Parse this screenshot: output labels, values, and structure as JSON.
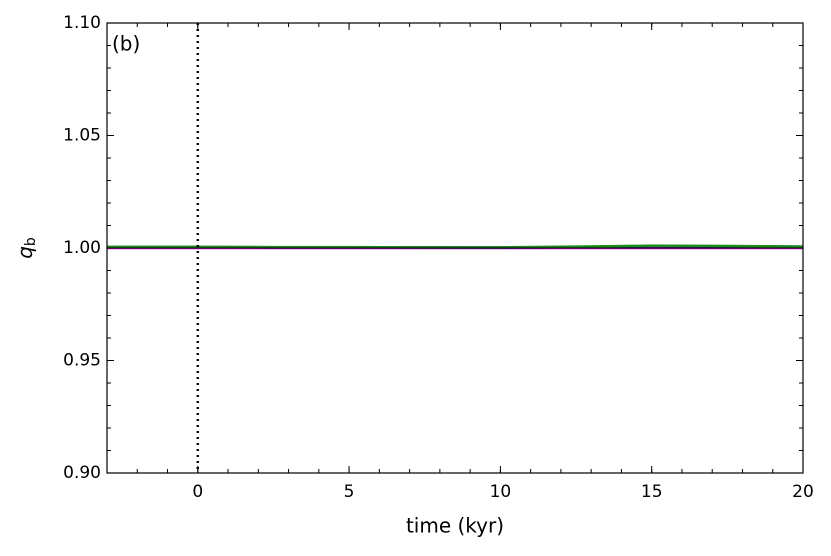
{
  "chart_data": {
    "type": "line",
    "annotation": "(b)",
    "xlabel": "time (kyr)",
    "ylabel": "q",
    "ylabel_sub": "b",
    "x": [
      -3,
      0,
      2.5,
      5,
      7.5,
      10,
      12.5,
      15,
      17.5,
      20
    ],
    "series": [
      {
        "color": "#cc00cc",
        "values": [
          1.0,
          1.0,
          1.0,
          1.0,
          1.0,
          1.0,
          1.0,
          1.0,
          1.0,
          1.0
        ]
      },
      {
        "color": "#1f1fa0",
        "values": [
          1.0004,
          1.0004,
          1.0003,
          1.0003,
          1.0003,
          1.0002,
          1.0004,
          1.0009,
          1.0008,
          1.0006
        ]
      },
      {
        "color": "#1a8a1a",
        "values": [
          1.0005,
          1.0005,
          1.0004,
          1.0004,
          1.0003,
          1.0003,
          1.0006,
          1.001,
          1.0009,
          1.0006
        ]
      }
    ],
    "vline": 0,
    "vline_color": "#000000",
    "xlim": [
      -3,
      20
    ],
    "xticks": [
      0,
      5,
      10,
      15,
      20
    ],
    "xminor": 1,
    "ylim": [
      0.9,
      1.1
    ],
    "yticks": [
      {
        "value": 0.9,
        "label": "0.90"
      },
      0.95,
      {
        "value": 1.0,
        "label": "1.00"
      },
      1.05,
      {
        "value": 1.1,
        "label": "1.10"
      }
    ],
    "yminor": 0.01,
    "hline": 1.0
  }
}
